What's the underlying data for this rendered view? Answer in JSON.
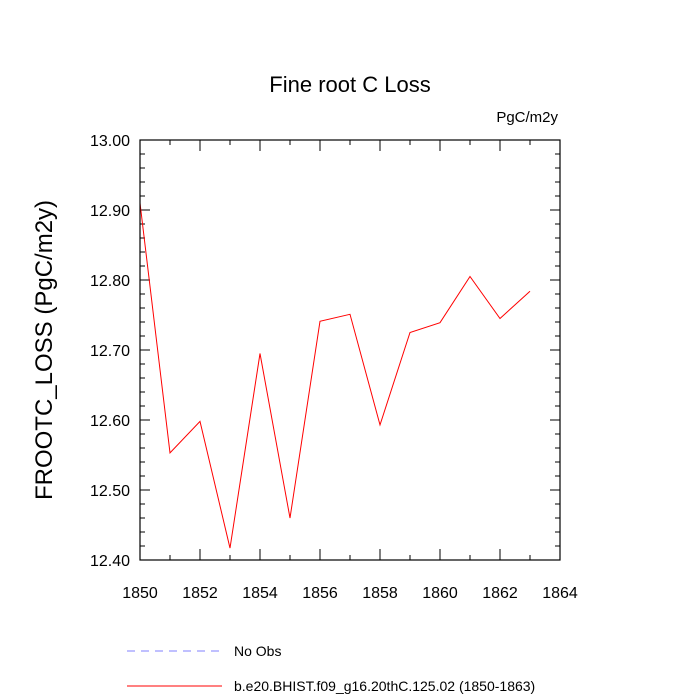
{
  "chart_data": {
    "type": "line",
    "title": "Fine root C Loss",
    "units_label": "PgC/m2y",
    "ylabel": "FROOTC_LOSS  (PgC/m2y)",
    "xlabel": "",
    "xlim": [
      1850,
      1864
    ],
    "ylim": [
      12.4,
      13.0
    ],
    "x_ticks": [
      1850,
      1852,
      1854,
      1856,
      1858,
      1860,
      1862,
      1864
    ],
    "y_ticks": [
      "12.40",
      "12.50",
      "12.60",
      "12.70",
      "12.80",
      "12.90",
      "13.00"
    ],
    "grid": false,
    "series": [
      {
        "name": "b.e20.BHIST.f09_g16.20thC.125.02 (1850-1863)",
        "color": "#ff0000",
        "x": [
          1850,
          1851,
          1852,
          1853,
          1854,
          1855,
          1856,
          1857,
          1858,
          1859,
          1860,
          1861,
          1862,
          1863
        ],
        "y": [
          12.91,
          12.553,
          12.598,
          12.417,
          12.695,
          12.46,
          12.741,
          12.751,
          12.593,
          12.725,
          12.739,
          12.805,
          12.745,
          12.784
        ]
      }
    ],
    "legend": [
      {
        "label": "No Obs",
        "color": "#8080ff",
        "style": "dashed"
      },
      {
        "label": "b.e20.BHIST.f09_g16.20thC.125.02 (1850-1863)",
        "color": "#ff0000",
        "style": "solid"
      }
    ]
  }
}
